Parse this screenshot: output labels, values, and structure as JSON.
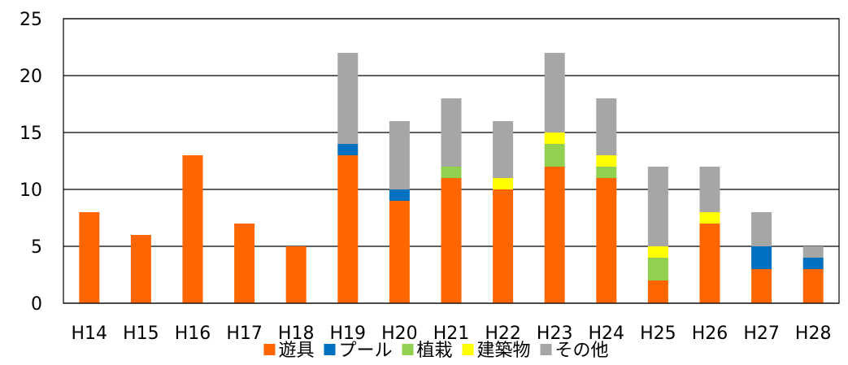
{
  "chart_data": {
    "type": "bar",
    "stacked": true,
    "categories": [
      "H14",
      "H15",
      "H16",
      "H17",
      "H18",
      "H19",
      "H20",
      "H21",
      "H22",
      "H23",
      "H24",
      "H25",
      "H26",
      "H27",
      "H28"
    ],
    "series": [
      {
        "name": "遊具",
        "color": "#FF6600",
        "values": [
          8,
          6,
          13,
          7,
          5,
          13,
          9,
          11,
          10,
          12,
          11,
          2,
          7,
          3,
          3
        ]
      },
      {
        "name": "プール",
        "color": "#0070C0",
        "values": [
          0,
          0,
          0,
          0,
          0,
          1,
          1,
          0,
          0,
          0,
          0,
          0,
          0,
          2,
          1
        ]
      },
      {
        "name": "植栽",
        "color": "#92D050",
        "values": [
          0,
          0,
          0,
          0,
          0,
          0,
          0,
          1,
          0,
          2,
          1,
          2,
          0,
          0,
          0
        ]
      },
      {
        "name": "建築物",
        "color": "#FFFF00",
        "values": [
          0,
          0,
          0,
          0,
          0,
          0,
          0,
          0,
          1,
          1,
          1,
          1,
          1,
          0,
          0
        ]
      },
      {
        "name": "その他",
        "color": "#A6A6A6",
        "values": [
          0,
          0,
          0,
          0,
          0,
          8,
          6,
          6,
          5,
          7,
          5,
          7,
          4,
          3,
          1
        ]
      }
    ],
    "ylim": [
      0,
      25
    ],
    "yticks": [
      0,
      5,
      10,
      15,
      20,
      25
    ],
    "grid": true,
    "legend_position": "bottom"
  }
}
